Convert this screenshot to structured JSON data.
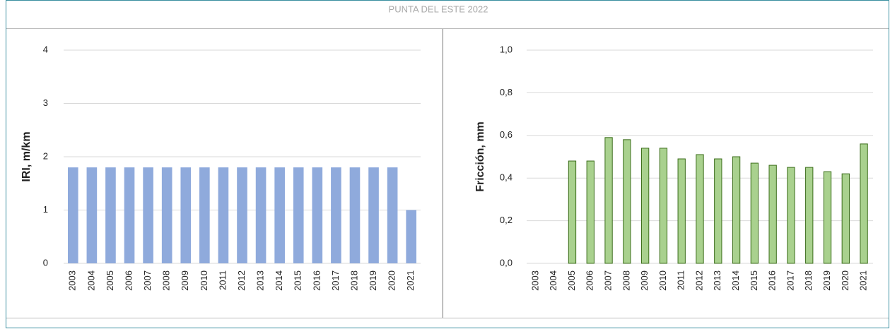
{
  "header": {
    "title": "PUNTA DEL ESTE 2022"
  },
  "chart_data": [
    {
      "type": "bar",
      "ylabel": "IRI, m/km",
      "categories": [
        "2003",
        "2004",
        "2005",
        "2006",
        "2007",
        "2008",
        "2009",
        "2010",
        "2011",
        "2012",
        "2013",
        "2014",
        "2015",
        "2016",
        "2017",
        "2018",
        "2019",
        "2020",
        "2021"
      ],
      "values": [
        1.8,
        1.8,
        1.8,
        1.8,
        1.8,
        1.8,
        1.8,
        1.8,
        1.8,
        1.8,
        1.8,
        1.8,
        1.8,
        1.8,
        1.8,
        1.8,
        1.8,
        1.8,
        1.0
      ],
      "color": "#8faadc",
      "ylim": [
        0,
        4
      ],
      "yticks": [
        0,
        1,
        2,
        3,
        4
      ],
      "grid": true
    },
    {
      "type": "bar",
      "ylabel": "Fricción, mm",
      "categories": [
        "2003",
        "2004",
        "2005",
        "2006",
        "2007",
        "2008",
        "2009",
        "2010",
        "2011",
        "2012",
        "2013",
        "2014",
        "2015",
        "2016",
        "2017",
        "2018",
        "2019",
        "2020",
        "2021"
      ],
      "values": [
        null,
        null,
        0.48,
        0.48,
        0.59,
        0.58,
        0.54,
        0.54,
        0.49,
        0.51,
        0.49,
        0.5,
        0.47,
        0.46,
        0.45,
        0.45,
        0.43,
        0.42,
        0.56
      ],
      "color": "#a9d18e",
      "edgecolor": "#3b6d1a",
      "ylim": [
        0,
        1
      ],
      "yticks": [
        {
          "value": 0,
          "label": "0,0"
        },
        {
          "value": 0.2,
          "label": "0,2"
        },
        {
          "value": 0.4,
          "label": "0,4"
        },
        {
          "value": 0.6,
          "label": "0,6"
        },
        {
          "value": 0.8,
          "label": "0,8"
        },
        {
          "value": 1,
          "label": "1,0"
        }
      ],
      "grid": true
    }
  ]
}
